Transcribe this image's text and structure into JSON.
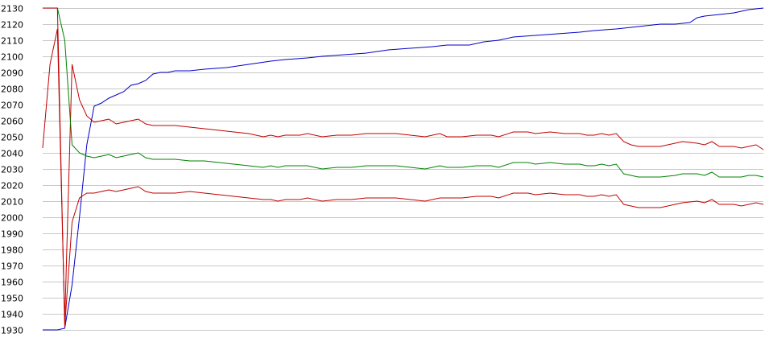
{
  "chart_data": {
    "type": "line",
    "title": "",
    "xlabel": "",
    "ylabel": "",
    "ylim": [
      1930,
      2130
    ],
    "xlim": [
      0,
      98
    ],
    "grid": true,
    "yticks": [
      "1930",
      "1940",
      "1950",
      "1960",
      "1970",
      "1980",
      "1990",
      "2000",
      "2010",
      "2020",
      "2030",
      "2040",
      "2050",
      "2060",
      "2070",
      "2080",
      "2090",
      "2100",
      "2110",
      "2120",
      "2130"
    ],
    "series": [
      {
        "color": "#0000c8",
        "points": [
          [
            0,
            1930
          ],
          [
            1,
            1930
          ],
          [
            2,
            1930
          ],
          [
            3,
            1931
          ],
          [
            4,
            1958
          ],
          [
            5,
            2000
          ],
          [
            6,
            2045
          ],
          [
            7,
            2069
          ],
          [
            8,
            2071
          ],
          [
            9,
            2074
          ],
          [
            10,
            2076
          ],
          [
            11,
            2078
          ],
          [
            12,
            2082
          ],
          [
            13,
            2083
          ],
          [
            14,
            2085
          ],
          [
            15,
            2089
          ],
          [
            16,
            2090
          ],
          [
            17,
            2090
          ],
          [
            18,
            2091
          ],
          [
            20,
            2091
          ],
          [
            22,
            2092
          ],
          [
            25,
            2093
          ],
          [
            28,
            2095
          ],
          [
            31,
            2097
          ],
          [
            33,
            2098
          ],
          [
            36,
            2099
          ],
          [
            38,
            2100
          ],
          [
            41,
            2101
          ],
          [
            44,
            2102
          ],
          [
            47,
            2104
          ],
          [
            50,
            2105
          ],
          [
            53,
            2106
          ],
          [
            55,
            2107
          ],
          [
            58,
            2107
          ],
          [
            60,
            2109
          ],
          [
            62,
            2110
          ],
          [
            64,
            2112
          ],
          [
            67,
            2113
          ],
          [
            70,
            2114
          ],
          [
            73,
            2115
          ],
          [
            75,
            2116
          ],
          [
            78,
            2117
          ],
          [
            80,
            2118
          ],
          [
            82,
            2119
          ],
          [
            84,
            2120
          ],
          [
            86,
            2120
          ],
          [
            88,
            2121
          ],
          [
            89,
            2124
          ],
          [
            90,
            2125
          ],
          [
            92,
            2126
          ],
          [
            94,
            2127
          ],
          [
            96,
            2129
          ],
          [
            98,
            2130
          ]
        ]
      },
      {
        "color": "#c00000",
        "points": [
          [
            0,
            2043
          ],
          [
            1,
            2095
          ],
          [
            2,
            2117
          ],
          [
            3,
            1935
          ],
          [
            4,
            2095
          ],
          [
            5,
            2073
          ],
          [
            6,
            2063
          ],
          [
            7,
            2059
          ],
          [
            8,
            2060
          ],
          [
            9,
            2061
          ],
          [
            10,
            2058
          ],
          [
            11,
            2059
          ],
          [
            12,
            2060
          ],
          [
            13,
            2061
          ],
          [
            14,
            2058
          ],
          [
            15,
            2057
          ],
          [
            16,
            2057
          ],
          [
            18,
            2057
          ],
          [
            20,
            2056
          ],
          [
            22,
            2055
          ],
          [
            24,
            2054
          ],
          [
            26,
            2053
          ],
          [
            28,
            2052
          ],
          [
            30,
            2050
          ],
          [
            31,
            2051
          ],
          [
            32,
            2050
          ],
          [
            33,
            2051
          ],
          [
            35,
            2051
          ],
          [
            36,
            2052
          ],
          [
            38,
            2050
          ],
          [
            40,
            2051
          ],
          [
            42,
            2051
          ],
          [
            44,
            2052
          ],
          [
            48,
            2052
          ],
          [
            50,
            2051
          ],
          [
            52,
            2050
          ],
          [
            54,
            2052
          ],
          [
            55,
            2050
          ],
          [
            57,
            2050
          ],
          [
            59,
            2051
          ],
          [
            61,
            2051
          ],
          [
            62,
            2050
          ],
          [
            64,
            2053
          ],
          [
            66,
            2053
          ],
          [
            67,
            2052
          ],
          [
            69,
            2053
          ],
          [
            71,
            2052
          ],
          [
            73,
            2052
          ],
          [
            74,
            2051
          ],
          [
            75,
            2051
          ],
          [
            76,
            2052
          ],
          [
            77,
            2051
          ],
          [
            78,
            2052
          ],
          [
            79,
            2047
          ],
          [
            80,
            2045
          ],
          [
            81,
            2044
          ],
          [
            84,
            2044
          ],
          [
            86,
            2046
          ],
          [
            87,
            2047
          ],
          [
            89,
            2046
          ],
          [
            90,
            2045
          ],
          [
            91,
            2047
          ],
          [
            92,
            2044
          ],
          [
            94,
            2044
          ],
          [
            95,
            2043
          ],
          [
            96,
            2044
          ],
          [
            97,
            2045
          ],
          [
            98,
            2042
          ]
        ]
      },
      {
        "color": "#008000",
        "points": [
          [
            0,
            2130
          ],
          [
            1,
            2130
          ],
          [
            2,
            2130
          ],
          [
            3,
            2110
          ],
          [
            4,
            2045
          ],
          [
            5,
            2040
          ],
          [
            6,
            2038
          ],
          [
            7,
            2037
          ],
          [
            8,
            2038
          ],
          [
            9,
            2039
          ],
          [
            10,
            2037
          ],
          [
            11,
            2038
          ],
          [
            12,
            2039
          ],
          [
            13,
            2040
          ],
          [
            14,
            2037
          ],
          [
            15,
            2036
          ],
          [
            16,
            2036
          ],
          [
            18,
            2036
          ],
          [
            20,
            2035
          ],
          [
            22,
            2035
          ],
          [
            24,
            2034
          ],
          [
            26,
            2033
          ],
          [
            28,
            2032
          ],
          [
            30,
            2031
          ],
          [
            31,
            2032
          ],
          [
            32,
            2031
          ],
          [
            33,
            2032
          ],
          [
            35,
            2032
          ],
          [
            36,
            2032
          ],
          [
            38,
            2030
          ],
          [
            40,
            2031
          ],
          [
            42,
            2031
          ],
          [
            44,
            2032
          ],
          [
            48,
            2032
          ],
          [
            50,
            2031
          ],
          [
            52,
            2030
          ],
          [
            54,
            2032
          ],
          [
            55,
            2031
          ],
          [
            57,
            2031
          ],
          [
            59,
            2032
          ],
          [
            61,
            2032
          ],
          [
            62,
            2031
          ],
          [
            64,
            2034
          ],
          [
            66,
            2034
          ],
          [
            67,
            2033
          ],
          [
            69,
            2034
          ],
          [
            71,
            2033
          ],
          [
            73,
            2033
          ],
          [
            74,
            2032
          ],
          [
            75,
            2032
          ],
          [
            76,
            2033
          ],
          [
            77,
            2032
          ],
          [
            78,
            2033
          ],
          [
            79,
            2027
          ],
          [
            80,
            2026
          ],
          [
            81,
            2025
          ],
          [
            84,
            2025
          ],
          [
            86,
            2026
          ],
          [
            87,
            2027
          ],
          [
            89,
            2027
          ],
          [
            90,
            2026
          ],
          [
            91,
            2028
          ],
          [
            92,
            2025
          ],
          [
            94,
            2025
          ],
          [
            95,
            2025
          ],
          [
            96,
            2026
          ],
          [
            97,
            2026
          ],
          [
            98,
            2025
          ]
        ]
      },
      {
        "color": "#c00000",
        "points": [
          [
            0,
            2130
          ],
          [
            1,
            2130
          ],
          [
            2,
            2130
          ],
          [
            3,
            1932
          ],
          [
            4,
            1997
          ],
          [
            5,
            2012
          ],
          [
            6,
            2015
          ],
          [
            7,
            2015
          ],
          [
            8,
            2016
          ],
          [
            9,
            2017
          ],
          [
            10,
            2016
          ],
          [
            11,
            2017
          ],
          [
            12,
            2018
          ],
          [
            13,
            2019
          ],
          [
            14,
            2016
          ],
          [
            15,
            2015
          ],
          [
            16,
            2015
          ],
          [
            18,
            2015
          ],
          [
            20,
            2016
          ],
          [
            22,
            2015
          ],
          [
            24,
            2014
          ],
          [
            26,
            2013
          ],
          [
            28,
            2012
          ],
          [
            30,
            2011
          ],
          [
            31,
            2011
          ],
          [
            32,
            2010
          ],
          [
            33,
            2011
          ],
          [
            35,
            2011
          ],
          [
            36,
            2012
          ],
          [
            38,
            2010
          ],
          [
            40,
            2011
          ],
          [
            42,
            2011
          ],
          [
            44,
            2012
          ],
          [
            48,
            2012
          ],
          [
            50,
            2011
          ],
          [
            52,
            2010
          ],
          [
            54,
            2012
          ],
          [
            55,
            2012
          ],
          [
            57,
            2012
          ],
          [
            59,
            2013
          ],
          [
            61,
            2013
          ],
          [
            62,
            2012
          ],
          [
            64,
            2015
          ],
          [
            66,
            2015
          ],
          [
            67,
            2014
          ],
          [
            69,
            2015
          ],
          [
            71,
            2014
          ],
          [
            73,
            2014
          ],
          [
            74,
            2013
          ],
          [
            75,
            2013
          ],
          [
            76,
            2014
          ],
          [
            77,
            2013
          ],
          [
            78,
            2014
          ],
          [
            79,
            2008
          ],
          [
            80,
            2007
          ],
          [
            81,
            2006
          ],
          [
            84,
            2006
          ],
          [
            86,
            2008
          ],
          [
            87,
            2009
          ],
          [
            89,
            2010
          ],
          [
            90,
            2009
          ],
          [
            91,
            2011
          ],
          [
            92,
            2008
          ],
          [
            94,
            2008
          ],
          [
            95,
            2007
          ],
          [
            96,
            2008
          ],
          [
            97,
            2009
          ],
          [
            98,
            2008
          ]
        ]
      }
    ]
  }
}
